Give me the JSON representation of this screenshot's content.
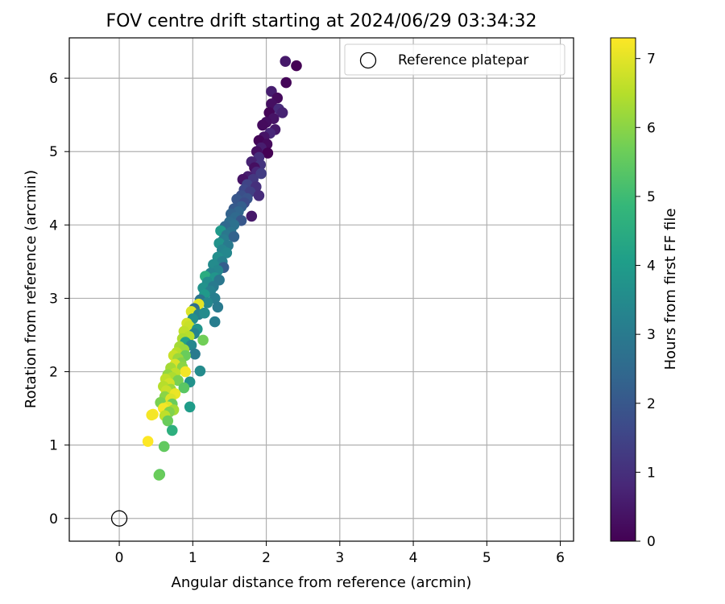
{
  "chart_data": {
    "type": "scatter",
    "title": "FOV centre drift starting at 2024/06/29 03:34:32",
    "xlabel": "Angular distance from reference (arcmin)",
    "ylabel": "Rotation from reference (arcmin)",
    "xlim": [
      -0.68,
      6.18
    ],
    "ylim": [
      -0.31,
      6.55
    ],
    "xticks": [
      0,
      1,
      2,
      3,
      4,
      5,
      6
    ],
    "yticks": [
      0,
      1,
      2,
      3,
      4,
      5,
      6
    ],
    "grid": true,
    "legend": {
      "placement": "top-right",
      "entries": [
        "Reference platepar"
      ]
    },
    "reference_point": {
      "x": 0.0,
      "y": 0.0,
      "label": "Reference platepar",
      "marker": "open-circle",
      "color": "#000000"
    },
    "colorbar": {
      "label": "Hours from first FF file",
      "min": 0,
      "max": 7.3,
      "ticks": [
        0,
        1,
        2,
        3,
        4,
        5,
        6,
        7
      ],
      "colormap": "viridis",
      "stops": [
        "#440154",
        "#482878",
        "#3e4989",
        "#31688e",
        "#26828e",
        "#1f9e89",
        "#35b779",
        "#6ece58",
        "#b5de2b",
        "#fde725"
      ]
    },
    "series": [
      {
        "points": [
          [
            2.26,
            6.23,
            0.5
          ],
          [
            2.41,
            6.17,
            0.0
          ],
          [
            2.27,
            5.94,
            0.1
          ],
          [
            2.07,
            5.82,
            0.6
          ],
          [
            2.15,
            5.73,
            0.2
          ],
          [
            2.07,
            5.65,
            0.3
          ],
          [
            2.17,
            5.58,
            0.9
          ],
          [
            2.22,
            5.53,
            0.7
          ],
          [
            2.04,
            5.53,
            0.1
          ],
          [
            2.1,
            5.45,
            0.4
          ],
          [
            2.0,
            5.4,
            0.3
          ],
          [
            1.95,
            5.36,
            0.2
          ],
          [
            2.12,
            5.3,
            0.5
          ],
          [
            2.05,
            5.25,
            0.8
          ],
          [
            1.97,
            5.2,
            0.4
          ],
          [
            1.9,
            5.15,
            0.1
          ],
          [
            2.01,
            5.1,
            0.2
          ],
          [
            1.93,
            5.05,
            0.6
          ],
          [
            1.87,
            5.0,
            0.3
          ],
          [
            2.02,
            4.98,
            0.0
          ],
          [
            1.9,
            4.92,
            1.0
          ],
          [
            1.8,
            4.86,
            0.7
          ],
          [
            1.92,
            4.82,
            1.1
          ],
          [
            1.84,
            4.78,
            0.3
          ],
          [
            1.87,
            4.72,
            0.8
          ],
          [
            1.93,
            4.7,
            1.3
          ],
          [
            1.75,
            4.66,
            0.6
          ],
          [
            1.82,
            4.62,
            1.2
          ],
          [
            1.68,
            4.62,
            0.4
          ],
          [
            1.74,
            4.55,
            1.5
          ],
          [
            1.86,
            4.52,
            1.0
          ],
          [
            1.7,
            4.48,
            1.6
          ],
          [
            1.78,
            4.45,
            1.4
          ],
          [
            1.66,
            4.4,
            1.8
          ],
          [
            1.9,
            4.4,
            0.9
          ],
          [
            1.74,
            4.36,
            1.9
          ],
          [
            1.6,
            4.35,
            2.0
          ],
          [
            1.7,
            4.3,
            1.7
          ],
          [
            1.66,
            4.25,
            2.2
          ],
          [
            1.56,
            4.22,
            2.1
          ],
          [
            1.62,
            4.18,
            2.4
          ],
          [
            1.52,
            4.15,
            2.3
          ],
          [
            1.8,
            4.12,
            0.5
          ],
          [
            1.58,
            4.1,
            2.5
          ],
          [
            1.66,
            4.06,
            2.0
          ],
          [
            1.5,
            4.04,
            2.6
          ],
          [
            1.56,
            4.0,
            2.7
          ],
          [
            1.44,
            3.98,
            2.5
          ],
          [
            1.38,
            3.92,
            3.9
          ],
          [
            1.52,
            3.9,
            2.8
          ],
          [
            1.46,
            3.86,
            2.9
          ],
          [
            1.56,
            3.84,
            2.3
          ],
          [
            1.42,
            3.8,
            3.1
          ],
          [
            1.36,
            3.75,
            3.7
          ],
          [
            1.48,
            3.72,
            3.0
          ],
          [
            1.4,
            3.66,
            3.3
          ],
          [
            1.46,
            3.62,
            3.4
          ],
          [
            1.34,
            3.56,
            3.6
          ],
          [
            1.4,
            3.5,
            3.2
          ],
          [
            1.28,
            3.46,
            3.5
          ],
          [
            1.42,
            3.42,
            2.2
          ],
          [
            1.34,
            3.38,
            3.4
          ],
          [
            1.24,
            3.34,
            3.3
          ],
          [
            1.17,
            3.3,
            4.5
          ],
          [
            1.3,
            3.28,
            3.8
          ],
          [
            1.36,
            3.25,
            2.9
          ],
          [
            1.2,
            3.22,
            3.6
          ],
          [
            1.28,
            3.16,
            3.0
          ],
          [
            1.14,
            3.14,
            3.7
          ],
          [
            1.24,
            3.1,
            3.2
          ],
          [
            1.16,
            3.05,
            3.9
          ],
          [
            1.3,
            3.0,
            3.1
          ],
          [
            1.1,
            2.98,
            2.8
          ],
          [
            1.2,
            2.94,
            3.4
          ],
          [
            1.08,
            2.92,
            7.0
          ],
          [
            1.34,
            2.88,
            3.0
          ],
          [
            1.02,
            2.86,
            2.6
          ],
          [
            0.98,
            2.82,
            6.9
          ],
          [
            1.08,
            2.78,
            3.2
          ],
          [
            1.16,
            2.8,
            3.5
          ],
          [
            1.0,
            2.72,
            3.6
          ],
          [
            1.3,
            2.68,
            3.1
          ],
          [
            0.92,
            2.66,
            6.8
          ],
          [
            0.95,
            2.62,
            6.7
          ],
          [
            1.06,
            2.58,
            3.8
          ],
          [
            0.88,
            2.55,
            6.6
          ],
          [
            1.02,
            2.52,
            3.3
          ],
          [
            0.95,
            2.48,
            6.5
          ],
          [
            0.86,
            2.45,
            6.4
          ],
          [
            1.14,
            2.43,
            5.7
          ],
          [
            0.9,
            2.4,
            4.2
          ],
          [
            0.98,
            2.36,
            3.4
          ],
          [
            0.82,
            2.34,
            6.3
          ],
          [
            0.88,
            2.3,
            6.2
          ],
          [
            0.78,
            2.26,
            6.5
          ],
          [
            1.03,
            2.24,
            3.0
          ],
          [
            0.74,
            2.22,
            6.7
          ],
          [
            0.9,
            2.22,
            5.6
          ],
          [
            0.8,
            2.18,
            6.2
          ],
          [
            0.84,
            2.12,
            5.9
          ],
          [
            0.76,
            2.1,
            6.9
          ],
          [
            0.86,
            2.06,
            6.0
          ],
          [
            0.7,
            2.05,
            6.3
          ],
          [
            1.1,
            2.01,
            3.5
          ],
          [
            0.9,
            2.0,
            7.2
          ],
          [
            0.76,
            1.98,
            6.6
          ],
          [
            0.66,
            1.96,
            6.1
          ],
          [
            0.72,
            1.92,
            6.4
          ],
          [
            0.63,
            1.9,
            6.6
          ],
          [
            0.8,
            1.88,
            5.8
          ],
          [
            0.96,
            1.86,
            3.7
          ],
          [
            0.68,
            1.84,
            6.8
          ],
          [
            0.6,
            1.8,
            6.5
          ],
          [
            0.88,
            1.78,
            5.4
          ],
          [
            0.7,
            1.76,
            6.2
          ],
          [
            0.64,
            1.74,
            6.7
          ],
          [
            0.76,
            1.7,
            7.1
          ],
          [
            0.62,
            1.66,
            6.0
          ],
          [
            0.7,
            1.63,
            6.9
          ],
          [
            0.56,
            1.58,
            5.8
          ],
          [
            0.72,
            1.56,
            5.6
          ],
          [
            0.96,
            1.52,
            4.0
          ],
          [
            0.66,
            1.52,
            7.0
          ],
          [
            0.6,
            1.5,
            7.2
          ],
          [
            0.74,
            1.48,
            6.3
          ],
          [
            0.68,
            1.45,
            5.9
          ],
          [
            0.46,
            1.42,
            7.3
          ],
          [
            0.62,
            1.4,
            6.6
          ],
          [
            0.44,
            1.41,
            7.2
          ],
          [
            0.66,
            1.33,
            5.6
          ],
          [
            0.72,
            1.2,
            4.6
          ],
          [
            0.39,
            1.05,
            7.3
          ],
          [
            0.61,
            0.98,
            5.5
          ],
          [
            0.55,
            0.6,
            5.4
          ],
          [
            0.54,
            0.59,
            5.6
          ]
        ]
      }
    ]
  }
}
